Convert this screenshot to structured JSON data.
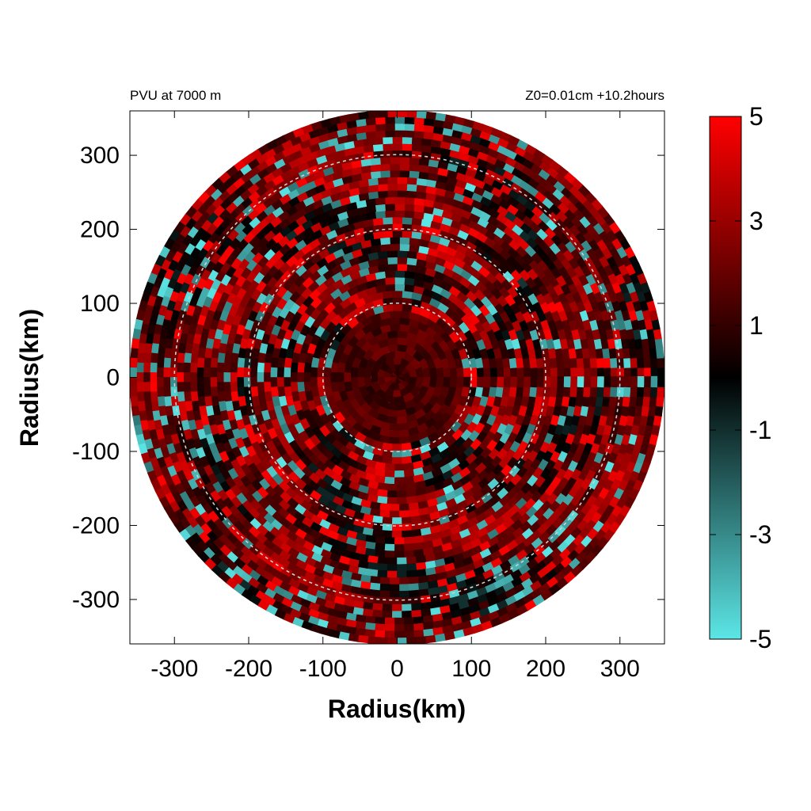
{
  "chart_data": {
    "type": "heatmap",
    "title_left": "PVU at  7000 m",
    "title_right": "Z0=0.01cm  +10.2hours",
    "xlabel": "Radius(km)",
    "ylabel": "Radius(km)",
    "xlim": [
      -360,
      360
    ],
    "ylim": [
      -360,
      360
    ],
    "xticks": [
      -300,
      -200,
      -100,
      0,
      100,
      200,
      300
    ],
    "yticks": [
      300,
      200,
      100,
      0,
      -100,
      -200,
      -300
    ],
    "domain_radius_km": 360,
    "reference_circles_km": [
      100,
      200,
      300
    ],
    "colorbar": {
      "min": -5,
      "max": 5,
      "ticks": [
        5,
        3,
        1,
        -1,
        -3,
        -5
      ],
      "colors": {
        "low": "#5ce6e6",
        "mid": "#000000",
        "high": "#ff0000"
      }
    },
    "field_description_values": {
      "inner_core_radius_km": 100,
      "inner_core_mean_pvu": 1.5,
      "band_pvu_range": [
        -5,
        5
      ]
    }
  }
}
